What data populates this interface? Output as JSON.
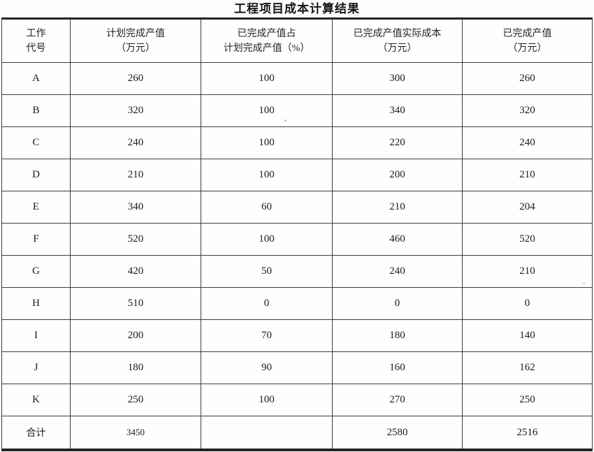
{
  "page": {
    "title": "工程项目成本计算结果"
  },
  "table": {
    "columns": [
      {
        "key": "code",
        "line1": "工作",
        "line2": "代号"
      },
      {
        "key": "planned",
        "line1": "计划完成产值",
        "line2": "（万元）"
      },
      {
        "key": "percent",
        "line1": "已完成产值占",
        "line2": "计划完成产值（%）"
      },
      {
        "key": "actual_cost",
        "line1": "已完成产值实际成本",
        "line2": "（万元）"
      },
      {
        "key": "completed",
        "line1": "已完成产值",
        "line2": "（万元）"
      }
    ],
    "rows": [
      {
        "code": "A",
        "planned": "260",
        "percent": "100",
        "actual_cost": "300",
        "completed": "260"
      },
      {
        "code": "B",
        "planned": "320",
        "percent": "100",
        "actual_cost": "340",
        "completed": "320"
      },
      {
        "code": "C",
        "planned": "240",
        "percent": "100",
        "actual_cost": "220",
        "completed": "240"
      },
      {
        "code": "D",
        "planned": "210",
        "percent": "100",
        "actual_cost": "200",
        "completed": "210"
      },
      {
        "code": "E",
        "planned": "340",
        "percent": "60",
        "actual_cost": "210",
        "completed": "204"
      },
      {
        "code": "F",
        "planned": "520",
        "percent": "100",
        "actual_cost": "460",
        "completed": "520"
      },
      {
        "code": "G",
        "planned": "420",
        "percent": "50",
        "actual_cost": "240",
        "completed": "210"
      },
      {
        "code": "H",
        "planned": "510",
        "percent": "0",
        "actual_cost": "0",
        "completed": "0"
      },
      {
        "code": "I",
        "planned": "200",
        "percent": "70",
        "actual_cost": "180",
        "completed": "140"
      },
      {
        "code": "J",
        "planned": "180",
        "percent": "90",
        "actual_cost": "160",
        "completed": "162"
      },
      {
        "code": "K",
        "planned": "250",
        "percent": "100",
        "actual_cost": "270",
        "completed": "250"
      }
    ],
    "total_row": {
      "code": "合计",
      "planned": "3450",
      "percent": "",
      "actual_cost": "2580",
      "completed": "2516"
    }
  },
  "colors": {
    "background": "#ffffff",
    "text": "#1c1c1c",
    "border_thin": "#3d3d3d",
    "border_thick": "#242424"
  }
}
